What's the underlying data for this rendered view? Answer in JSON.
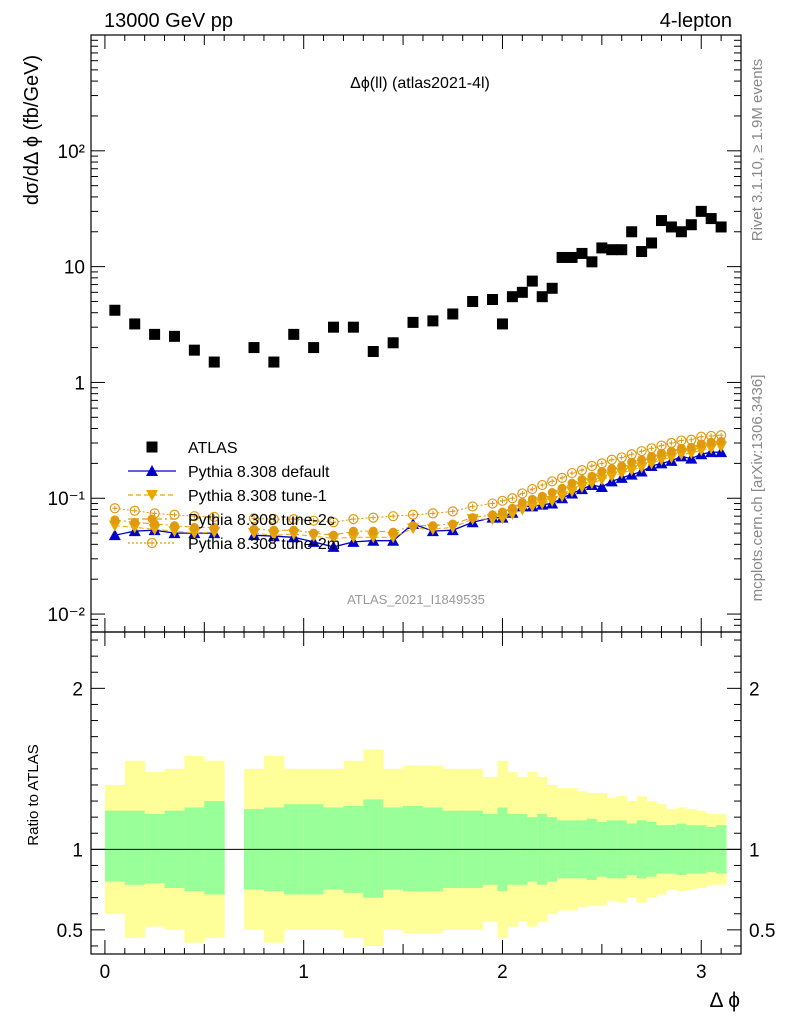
{
  "header": {
    "left": "13000 GeV pp",
    "right": "4-lepton"
  },
  "side_labels": {
    "rivet": "Rivet 3.1.10, ≥ 1.9M events",
    "mcplots": "mcplots.cern.ch [arXiv:1306.3436]"
  },
  "chart_data": {
    "type": "scatter",
    "title": "Δϕ(ll) (atlas2021-4l)",
    "watermark": "ATLAS_2021_I1849535",
    "xlabel": "Δ ϕ",
    "ylabel": "dσ/dΔ ϕ (fb/GeV)",
    "ratio_ylabel": "Ratio to ATLAS",
    "xlim": [
      -0.07,
      3.2
    ],
    "ylim": [
      0.007,
      1000
    ],
    "yscale": "log",
    "ratio_ylim": [
      0.35,
      2.35
    ],
    "x_ticks": [
      0,
      1,
      2,
      3
    ],
    "x_tick_labels": [
      "0",
      "1",
      "2",
      "3"
    ],
    "y_ticks": [
      0.01,
      0.1,
      1,
      10,
      100
    ],
    "y_tick_labels": [
      "10⁻²",
      "10⁻¹",
      "1",
      "10",
      "10²"
    ],
    "ratio_ticks": [
      0.5,
      1,
      2
    ],
    "ratio_tick_labels": [
      "0.5",
      "1",
      "2"
    ],
    "legend_position": "lower-left",
    "x": [
      0.05,
      0.15,
      0.25,
      0.35,
      0.45,
      0.55,
      0.65,
      0.75,
      0.85,
      0.95,
      1.05,
      1.15,
      1.25,
      1.35,
      1.45,
      1.55,
      1.65,
      1.75,
      1.85,
      1.95,
      2.0,
      2.05,
      2.1,
      2.15,
      2.2,
      2.25,
      2.3,
      2.35,
      2.4,
      2.45,
      2.5,
      2.55,
      2.6,
      2.65,
      2.7,
      2.75,
      2.8,
      2.85,
      2.9,
      2.95,
      3.0,
      3.05,
      3.1
    ],
    "series": [
      {
        "name": "ATLAS",
        "color": "#000000",
        "marker": "square",
        "values": [
          4.2,
          3.2,
          2.6,
          2.5,
          1.9,
          1.5,
          0.0,
          2.0,
          1.5,
          2.6,
          2.0,
          3.0,
          3.0,
          1.85,
          2.2,
          3.3,
          3.4,
          3.9,
          5.0,
          5.2,
          3.2,
          5.5,
          6.0,
          7.5,
          5.5,
          6.5,
          12.0,
          12.0,
          13.0,
          11.0,
          14.5,
          14.0,
          14.0,
          20.0,
          13.5,
          16.0,
          25.0,
          22.0,
          20.0,
          23.0,
          30.0,
          26.0,
          22.0
        ]
      },
      {
        "name": "Pythia 8.308 default",
        "color": "#0000cc",
        "marker": "triangle-up",
        "values": [
          0.048,
          0.052,
          0.053,
          0.05,
          0.05,
          0.05,
          0.0,
          0.048,
          0.047,
          0.046,
          0.042,
          0.038,
          0.042,
          0.043,
          0.043,
          0.06,
          0.052,
          0.053,
          0.062,
          0.068,
          0.068,
          0.075,
          0.085,
          0.085,
          0.088,
          0.09,
          0.1,
          0.11,
          0.12,
          0.13,
          0.125,
          0.14,
          0.15,
          0.16,
          0.17,
          0.19,
          0.2,
          0.21,
          0.23,
          0.22,
          0.24,
          0.25,
          0.25
        ]
      },
      {
        "name": "Pythia 8.308 tune-1",
        "color": "#e8a800",
        "marker": "triangle-down",
        "values": [
          0.058,
          0.056,
          0.054,
          0.052,
          0.05,
          0.051,
          0.0,
          0.05,
          0.048,
          0.049,
          0.047,
          0.045,
          0.046,
          0.046,
          0.046,
          0.055,
          0.054,
          0.056,
          0.066,
          0.066,
          0.067,
          0.073,
          0.08,
          0.085,
          0.09,
          0.095,
          0.104,
          0.115,
          0.125,
          0.135,
          0.145,
          0.155,
          0.165,
          0.175,
          0.185,
          0.2,
          0.215,
          0.225,
          0.24,
          0.245,
          0.26,
          0.27,
          0.28
        ]
      },
      {
        "name": "Pythia 8.308 tune-2c",
        "color": "#e09a10",
        "marker": "circle",
        "values": [
          0.065,
          0.062,
          0.06,
          0.058,
          0.056,
          0.056,
          0.0,
          0.054,
          0.053,
          0.053,
          0.05,
          0.048,
          0.052,
          0.052,
          0.051,
          0.058,
          0.058,
          0.06,
          0.068,
          0.072,
          0.076,
          0.082,
          0.092,
          0.098,
          0.104,
          0.112,
          0.122,
          0.135,
          0.145,
          0.155,
          0.17,
          0.18,
          0.19,
          0.205,
          0.215,
          0.23,
          0.245,
          0.255,
          0.27,
          0.275,
          0.295,
          0.305,
          0.31
        ]
      },
      {
        "name": "Pythia 8.308 tune-2m",
        "color": "#e09a10",
        "marker": "circle-open",
        "values": [
          0.082,
          0.078,
          0.074,
          0.072,
          0.07,
          0.069,
          0.0,
          0.067,
          0.066,
          0.066,
          0.064,
          0.062,
          0.066,
          0.068,
          0.07,
          0.072,
          0.074,
          0.077,
          0.085,
          0.09,
          0.095,
          0.1,
          0.11,
          0.12,
          0.13,
          0.14,
          0.15,
          0.165,
          0.175,
          0.19,
          0.2,
          0.215,
          0.225,
          0.24,
          0.255,
          0.27,
          0.285,
          0.3,
          0.315,
          0.32,
          0.34,
          0.345,
          0.35
        ]
      }
    ],
    "ratio_band_inner": {
      "lower": [
        0.8,
        0.78,
        0.79,
        0.76,
        0.74,
        0.72,
        0.0,
        0.75,
        0.74,
        0.72,
        0.72,
        0.75,
        0.73,
        0.7,
        0.75,
        0.74,
        0.74,
        0.76,
        0.76,
        0.78,
        0.74,
        0.78,
        0.78,
        0.8,
        0.78,
        0.8,
        0.82,
        0.82,
        0.82,
        0.81,
        0.83,
        0.82,
        0.82,
        0.84,
        0.82,
        0.83,
        0.85,
        0.85,
        0.84,
        0.85,
        0.85,
        0.86,
        0.85
      ],
      "upper": [
        1.24,
        1.24,
        1.22,
        1.24,
        1.26,
        1.3,
        0.0,
        1.25,
        1.26,
        1.28,
        1.28,
        1.26,
        1.27,
        1.31,
        1.26,
        1.27,
        1.26,
        1.24,
        1.24,
        1.22,
        1.26,
        1.22,
        1.22,
        1.2,
        1.22,
        1.2,
        1.18,
        1.18,
        1.18,
        1.19,
        1.17,
        1.18,
        1.18,
        1.16,
        1.18,
        1.17,
        1.15,
        1.15,
        1.16,
        1.15,
        1.15,
        1.14,
        1.15
      ]
    },
    "ratio_band_outer": {
      "lower": [
        0.6,
        0.45,
        0.52,
        0.5,
        0.42,
        0.45,
        0.0,
        0.5,
        0.42,
        0.5,
        0.5,
        0.5,
        0.45,
        0.4,
        0.5,
        0.48,
        0.48,
        0.5,
        0.5,
        0.55,
        0.45,
        0.52,
        0.55,
        0.52,
        0.55,
        0.6,
        0.62,
        0.62,
        0.64,
        0.65,
        0.65,
        0.68,
        0.67,
        0.7,
        0.67,
        0.7,
        0.72,
        0.75,
        0.74,
        0.75,
        0.76,
        0.78,
        0.78
      ]
    }
  },
  "ratio_band_outer_upper": [
    1.4,
    1.55,
    1.48,
    1.5,
    1.58,
    1.55,
    0.0,
    1.5,
    1.58,
    1.5,
    1.5,
    1.5,
    1.55,
    1.62,
    1.5,
    1.52,
    1.52,
    1.5,
    1.5,
    1.45,
    1.55,
    1.48,
    1.45,
    1.48,
    1.45,
    1.4,
    1.38,
    1.38,
    1.36,
    1.35,
    1.35,
    1.32,
    1.33,
    1.3,
    1.33,
    1.3,
    1.28,
    1.25,
    1.26,
    1.25,
    1.24,
    1.22,
    1.22
  ]
}
